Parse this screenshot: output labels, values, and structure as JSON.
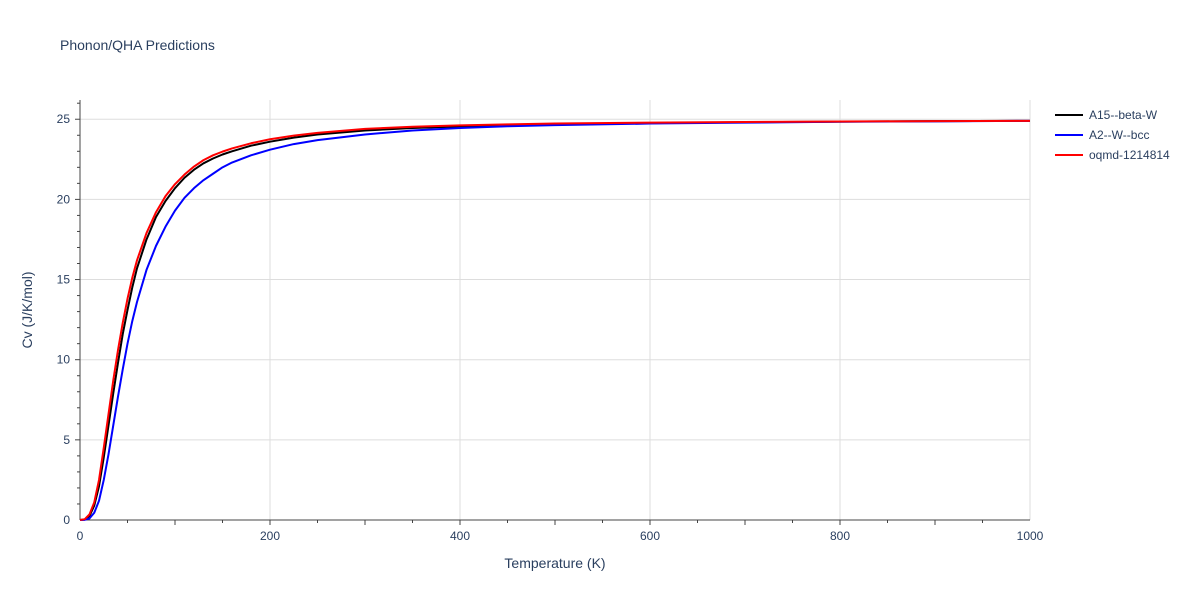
{
  "chart_data": {
    "type": "line",
    "title": "Phonon/QHA Predictions",
    "xlabel": "Temperature (K)",
    "ylabel": "Cv (J/K/mol)",
    "xlim": [
      0,
      1000
    ],
    "ylim": [
      0,
      26.2
    ],
    "xticks": [
      0,
      200,
      400,
      600,
      800,
      1000
    ],
    "yticks": [
      0,
      5,
      10,
      15,
      20,
      25
    ],
    "grid": true,
    "legend": "top-right",
    "series": [
      {
        "name": "A15--beta-W",
        "color": "#000000",
        "x": [
          0,
          5,
          10,
          15,
          20,
          25,
          30,
          35,
          40,
          45,
          50,
          55,
          60,
          70,
          80,
          90,
          100,
          110,
          120,
          130,
          140,
          150,
          160,
          180,
          200,
          225,
          250,
          300,
          350,
          400,
          450,
          500,
          600,
          700,
          800,
          900,
          1000
        ],
        "y": [
          0,
          0.03,
          0.25,
          0.9,
          2.1,
          3.9,
          5.9,
          7.9,
          9.8,
          11.6,
          13.1,
          14.5,
          15.7,
          17.5,
          18.9,
          19.9,
          20.7,
          21.35,
          21.85,
          22.25,
          22.55,
          22.8,
          23.0,
          23.35,
          23.6,
          23.85,
          24.05,
          24.3,
          24.45,
          24.55,
          24.62,
          24.68,
          24.76,
          24.81,
          24.85,
          24.88,
          24.9
        ]
      },
      {
        "name": "A2--W--bcc",
        "color": "#0000ff",
        "x": [
          0,
          5,
          10,
          15,
          20,
          25,
          30,
          35,
          40,
          45,
          50,
          55,
          60,
          70,
          80,
          90,
          100,
          110,
          120,
          130,
          140,
          150,
          160,
          180,
          200,
          225,
          250,
          300,
          350,
          400,
          450,
          500,
          600,
          700,
          800,
          900,
          1000
        ],
        "y": [
          0,
          0.01,
          0.1,
          0.45,
          1.2,
          2.5,
          4.1,
          5.9,
          7.7,
          9.4,
          11.0,
          12.4,
          13.6,
          15.6,
          17.1,
          18.3,
          19.3,
          20.1,
          20.7,
          21.2,
          21.6,
          22.0,
          22.3,
          22.75,
          23.1,
          23.45,
          23.7,
          24.05,
          24.3,
          24.45,
          24.56,
          24.63,
          24.73,
          24.79,
          24.84,
          24.87,
          24.9
        ]
      },
      {
        "name": "oqmd-1214814",
        "color": "#ff0000",
        "x": [
          0,
          5,
          10,
          15,
          20,
          25,
          30,
          35,
          40,
          45,
          50,
          55,
          60,
          70,
          80,
          90,
          100,
          110,
          120,
          130,
          140,
          150,
          160,
          180,
          200,
          225,
          250,
          300,
          350,
          400,
          450,
          500,
          600,
          700,
          800,
          900,
          1000
        ],
        "y": [
          0,
          0.05,
          0.35,
          1.1,
          2.5,
          4.5,
          6.6,
          8.7,
          10.6,
          12.3,
          13.8,
          15.1,
          16.2,
          17.9,
          19.2,
          20.2,
          20.95,
          21.55,
          22.05,
          22.45,
          22.75,
          22.98,
          23.18,
          23.5,
          23.75,
          23.98,
          24.15,
          24.4,
          24.53,
          24.62,
          24.68,
          24.73,
          24.79,
          24.83,
          24.86,
          24.88,
          24.9
        ]
      }
    ]
  }
}
